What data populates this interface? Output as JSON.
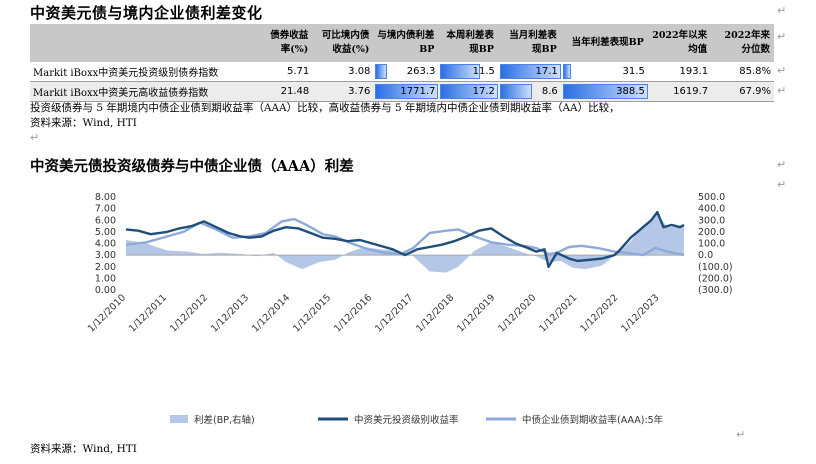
{
  "table_section": {
    "title": "中资美元债与境内企业债利差变化",
    "headers": [
      "",
      "债券收益率(%)",
      "可比境内债收益(%)",
      "与境内债利差BP",
      "本周利差表现BP",
      "当月利差表现BP",
      "当年利差表现BP",
      "2022年以来均值",
      "2022年来分位数"
    ],
    "rows": [
      {
        "name": "Markit iBoxx中资美元投资级别债券指数",
        "yield": "5.71",
        "domestic": "3.08",
        "spread": "263.3",
        "week": "11.5",
        "month": "17.1",
        "ytd": "31.5",
        "avg": "193.1",
        "pct": "85.8%"
      },
      {
        "name": "Markit iBoxx中资美元高收益债券指数",
        "yield": "21.48",
        "domestic": "3.76",
        "spread": "1771.7",
        "week": "17.2",
        "month": "8.6",
        "ytd": "388.5",
        "avg": "1619.7",
        "pct": "67.9%"
      }
    ],
    "bar_fractions": {
      "spread": [
        0.149,
        1.0
      ],
      "week": [
        0.669,
        1.0
      ],
      "month": [
        1.0,
        0.503
      ],
      "ytd": [
        0.081,
        1.0
      ]
    },
    "note": "投资级债券与 5 年期境内中债企业债到期收益率（AAA）比较，高收益债券与 5 年期境内中债企业债到期收益率（AA）比较，",
    "source": "资料来源：Wind, HTI"
  },
  "chart_section": {
    "title": "中资美元债投资级债券与中债企业债（AAA）利差",
    "source": "资料来源：Wind, HTI"
  },
  "chart_data": {
    "type": "line",
    "y_left_ticks": [
      "8.00",
      "7.00",
      "6.00",
      "5.00",
      "4.00",
      "3.00",
      "2.00",
      "1.00",
      "0.00"
    ],
    "y_left_range": [
      0,
      8
    ],
    "y_right_ticks": [
      "500.0",
      "400.0",
      "300.0",
      "200.0",
      "100.0",
      "0.0",
      "(100.0)",
      "(200.0)",
      "(300.0)"
    ],
    "y_right_range": [
      -300,
      500
    ],
    "x_ticks": [
      "1/12/2010",
      "1/12/2011",
      "1/12/2012",
      "1/12/2013",
      "1/12/2014",
      "1/12/2015",
      "1/12/2016",
      "1/12/2017",
      "1/12/2018",
      "1/12/2019",
      "1/12/2020",
      "1/12/2021",
      "1/12/2022",
      "1/12/2023"
    ],
    "x_range": [
      2010.0,
      2023.6
    ],
    "legend": [
      "利差(BP,右轴)",
      "中资美元投资级别收益率",
      "中债企业债到期收益率(AAA):5年"
    ],
    "colors": {
      "spread": "#b4c7e7",
      "usd": "#1f4e79",
      "cny": "#8eaadb"
    },
    "series": [
      {
        "name": "中资美元投资级别收益率",
        "axis": "left",
        "x": [
          2010.0,
          2010.3,
          2010.6,
          2011.0,
          2011.3,
          2011.6,
          2011.9,
          2012.2,
          2012.5,
          2012.8,
          2013.0,
          2013.3,
          2013.6,
          2013.9,
          2014.2,
          2014.5,
          2014.8,
          2015.1,
          2015.4,
          2015.7,
          2016.0,
          2016.3,
          2016.5,
          2016.8,
          2017.1,
          2017.4,
          2017.7,
          2018.0,
          2018.3,
          2018.6,
          2018.9,
          2019.2,
          2019.5,
          2019.8,
          2020.0,
          2020.2,
          2020.3,
          2020.5,
          2020.8,
          2021.0,
          2021.3,
          2021.6,
          2021.9,
          2022.0,
          2022.3,
          2022.6,
          2022.8,
          2022.95,
          2023.1,
          2023.3,
          2023.5,
          2023.6
        ],
        "y": [
          5.2,
          5.1,
          4.8,
          5.0,
          5.3,
          5.5,
          5.9,
          5.4,
          4.9,
          4.6,
          4.5,
          4.6,
          5.1,
          5.4,
          5.3,
          4.9,
          4.5,
          4.4,
          4.2,
          4.3,
          4.0,
          3.7,
          3.5,
          3.0,
          3.5,
          3.7,
          3.9,
          4.2,
          4.6,
          5.1,
          5.3,
          4.6,
          4.0,
          3.6,
          3.3,
          3.5,
          2.0,
          3.2,
          2.7,
          2.5,
          2.6,
          2.7,
          3.0,
          3.3,
          4.5,
          5.4,
          6.0,
          6.7,
          5.4,
          5.6,
          5.4,
          5.6
        ]
      },
      {
        "name": "中债企业债到期收益率(AAA):5年",
        "axis": "left",
        "x": [
          2010.0,
          2010.5,
          2011.0,
          2011.4,
          2011.8,
          2012.2,
          2012.6,
          2013.0,
          2013.4,
          2013.8,
          2014.1,
          2014.4,
          2014.8,
          2015.1,
          2015.5,
          2015.9,
          2016.3,
          2016.7,
          2017.0,
          2017.4,
          2017.8,
          2018.1,
          2018.5,
          2018.9,
          2019.3,
          2019.7,
          2020.0,
          2020.3,
          2020.5,
          2020.8,
          2021.1,
          2021.5,
          2021.9,
          2022.2,
          2022.6,
          2022.9,
          2023.2,
          2023.6
        ],
        "y": [
          3.9,
          4.1,
          4.6,
          5.0,
          5.8,
          5.2,
          4.5,
          4.6,
          4.9,
          5.9,
          6.1,
          5.6,
          4.8,
          4.6,
          4.0,
          3.5,
          3.2,
          3.1,
          3.6,
          4.9,
          5.1,
          5.2,
          4.6,
          4.1,
          3.9,
          3.8,
          3.6,
          3.1,
          3.2,
          3.7,
          3.8,
          3.6,
          3.3,
          3.2,
          3.0,
          3.6,
          3.3,
          3.0
        ]
      },
      {
        "name": "利差(BP,右轴)",
        "axis": "right",
        "type": "area",
        "x": [
          2010.0,
          2010.5,
          2011.0,
          2011.5,
          2011.9,
          2012.3,
          2012.8,
          2013.2,
          2013.6,
          2013.9,
          2014.3,
          2014.7,
          2015.1,
          2015.4,
          2015.8,
          2016.2,
          2016.6,
          2017.0,
          2017.4,
          2017.8,
          2018.1,
          2018.5,
          2018.9,
          2019.3,
          2019.7,
          2020.0,
          2020.3,
          2020.6,
          2020.9,
          2021.2,
          2021.6,
          2022.0,
          2022.3,
          2022.6,
          2022.8,
          2022.95,
          2023.2,
          2023.6
        ],
        "y": [
          130,
          100,
          40,
          30,
          10,
          20,
          10,
          -10,
          20,
          -60,
          -120,
          -60,
          -40,
          20,
          70,
          50,
          40,
          -10,
          -140,
          -150,
          -100,
          40,
          110,
          70,
          20,
          -10,
          -60,
          -50,
          -110,
          -120,
          -90,
          20,
          120,
          250,
          300,
          350,
          240,
          260
        ]
      }
    ]
  }
}
